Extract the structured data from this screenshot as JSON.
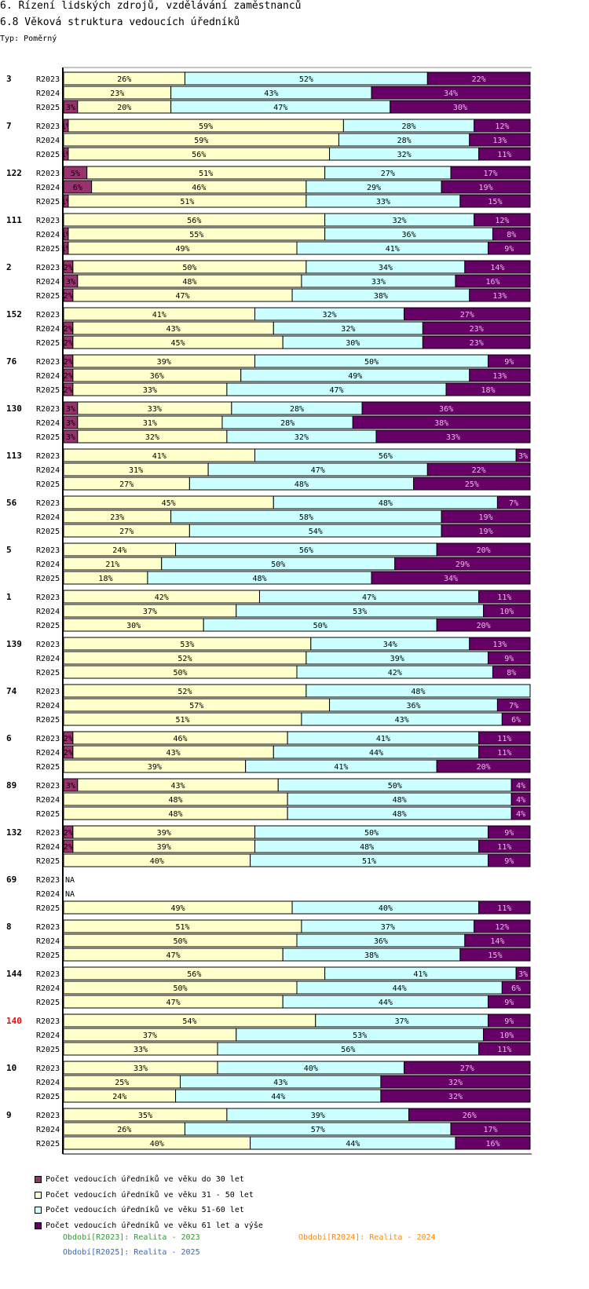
{
  "header": {
    "title1": "6. Řízení lidských zdrojů, vzdělávání zaměstnanců",
    "title2": "6.8 Věková struktura vedoucích úředníků",
    "type_label": "Typ: Poměrný"
  },
  "colors": {
    "do30": "#99336e",
    "y31_50": "#ffffcc",
    "y51_60": "#ccffff",
    "y61": "#660066",
    "highlight_group": "#ff0000"
  },
  "legend": [
    "Počet vedoucích úředníků ve věku do 30 let",
    "Počet vedoucích úředníků ve věku 31 - 50 let",
    "Počet vedoucích úředníků ve věku 51-60 let",
    "Počet vedoucích úředníků ve věku 61 let a výše"
  ],
  "periods": [
    {
      "text": "Období[R2023]: Realita - 2023",
      "color": "#339933"
    },
    {
      "text": "Období[R2024]: Realita - 2024",
      "color": "#ff8800"
    },
    {
      "text": "Období[R2025]: Realita - 2025",
      "color": "#3366cc"
    }
  ],
  "chart_data": {
    "type": "stacked-bar-horizontal",
    "title": "6.8 Věková struktura vedoucích úředníků",
    "unit": "%",
    "series_names": [
      "do 30 let",
      "31 - 50 let",
      "51-60 let",
      "61 let a výše"
    ],
    "groups": [
      {
        "label": "3",
        "highlight": false,
        "rows": [
          {
            "period": "R2023",
            "values": [
              0,
              26,
              52,
              22
            ]
          },
          {
            "period": "R2024",
            "values": [
              0,
              23,
              43,
              34
            ]
          },
          {
            "period": "R2025",
            "values": [
              3,
              20,
              47,
              30
            ]
          }
        ]
      },
      {
        "label": "7",
        "highlight": false,
        "rows": [
          {
            "period": "R2023",
            "values": [
              1,
              59,
              28,
              12
            ]
          },
          {
            "period": "R2024",
            "values": [
              0,
              59,
              28,
              13
            ]
          },
          {
            "period": "R2025",
            "values": [
              1,
              56,
              32,
              11
            ]
          }
        ]
      },
      {
        "label": "122",
        "highlight": false,
        "rows": [
          {
            "period": "R2023",
            "values": [
              5,
              51,
              27,
              17
            ]
          },
          {
            "period": "R2024",
            "values": [
              6,
              46,
              29,
              19
            ]
          },
          {
            "period": "R2025",
            "values": [
              1,
              51,
              33,
              15
            ]
          }
        ]
      },
      {
        "label": "111",
        "highlight": false,
        "rows": [
          {
            "period": "R2023",
            "values": [
              0,
              56,
              32,
              12
            ]
          },
          {
            "period": "R2024",
            "values": [
              1,
              55,
              36,
              8
            ]
          },
          {
            "period": "R2025",
            "values": [
              1,
              49,
              41,
              9
            ]
          }
        ]
      },
      {
        "label": "2",
        "highlight": false,
        "rows": [
          {
            "period": "R2023",
            "values": [
              2,
              50,
              34,
              14
            ]
          },
          {
            "period": "R2024",
            "values": [
              3,
              48,
              33,
              16
            ]
          },
          {
            "period": "R2025",
            "values": [
              2,
              47,
              38,
              13
            ]
          }
        ]
      },
      {
        "label": "152",
        "highlight": false,
        "rows": [
          {
            "period": "R2023",
            "values": [
              0,
              41,
              32,
              27
            ]
          },
          {
            "period": "R2024",
            "values": [
              2,
              43,
              32,
              23
            ]
          },
          {
            "period": "R2025",
            "values": [
              2,
              45,
              30,
              23
            ]
          }
        ]
      },
      {
        "label": "76",
        "highlight": false,
        "rows": [
          {
            "period": "R2023",
            "values": [
              2,
              39,
              50,
              9
            ]
          },
          {
            "period": "R2024",
            "values": [
              2,
              36,
              49,
              13
            ]
          },
          {
            "period": "R2025",
            "values": [
              2,
              33,
              47,
              18
            ]
          }
        ]
      },
      {
        "label": "130",
        "highlight": false,
        "rows": [
          {
            "period": "R2023",
            "values": [
              3,
              33,
              28,
              36
            ]
          },
          {
            "period": "R2024",
            "values": [
              3,
              31,
              28,
              38
            ]
          },
          {
            "period": "R2025",
            "values": [
              3,
              32,
              32,
              33
            ]
          }
        ]
      },
      {
        "label": "113",
        "highlight": false,
        "rows": [
          {
            "period": "R2023",
            "values": [
              0,
              41,
              56,
              3
            ]
          },
          {
            "period": "R2024",
            "values": [
              0,
              31,
              47,
              22
            ]
          },
          {
            "period": "R2025",
            "values": [
              0,
              27,
              48,
              25
            ]
          }
        ]
      },
      {
        "label": "56",
        "highlight": false,
        "rows": [
          {
            "period": "R2023",
            "values": [
              0,
              45,
              48,
              7
            ]
          },
          {
            "period": "R2024",
            "values": [
              0,
              23,
              58,
              19
            ]
          },
          {
            "period": "R2025",
            "values": [
              0,
              27,
              54,
              19
            ]
          }
        ]
      },
      {
        "label": "5",
        "highlight": false,
        "rows": [
          {
            "period": "R2023",
            "values": [
              0,
              24,
              56,
              20
            ]
          },
          {
            "period": "R2024",
            "values": [
              0,
              21,
              50,
              29
            ]
          },
          {
            "period": "R2025",
            "values": [
              0,
              18,
              48,
              34
            ]
          }
        ]
      },
      {
        "label": "1",
        "highlight": false,
        "rows": [
          {
            "period": "R2023",
            "values": [
              0,
              42,
              47,
              11
            ]
          },
          {
            "period": "R2024",
            "values": [
              0,
              37,
              53,
              10
            ]
          },
          {
            "period": "R2025",
            "values": [
              0,
              30,
              50,
              20
            ]
          }
        ]
      },
      {
        "label": "139",
        "highlight": false,
        "rows": [
          {
            "period": "R2023",
            "values": [
              0,
              53,
              34,
              13
            ]
          },
          {
            "period": "R2024",
            "values": [
              0,
              52,
              39,
              9
            ]
          },
          {
            "period": "R2025",
            "values": [
              0,
              50,
              42,
              8
            ]
          }
        ]
      },
      {
        "label": "74",
        "highlight": false,
        "rows": [
          {
            "period": "R2023",
            "values": [
              0,
              52,
              48,
              0
            ]
          },
          {
            "period": "R2024",
            "values": [
              0,
              57,
              36,
              7
            ]
          },
          {
            "period": "R2025",
            "values": [
              0,
              51,
              43,
              6
            ]
          }
        ]
      },
      {
        "label": "6",
        "highlight": false,
        "rows": [
          {
            "period": "R2023",
            "values": [
              2,
              46,
              41,
              11
            ]
          },
          {
            "period": "R2024",
            "values": [
              2,
              43,
              44,
              11
            ]
          },
          {
            "period": "R2025",
            "values": [
              0,
              39,
              41,
              20
            ]
          }
        ]
      },
      {
        "label": "89",
        "highlight": false,
        "rows": [
          {
            "period": "R2023",
            "values": [
              3,
              43,
              50,
              4
            ]
          },
          {
            "period": "R2024",
            "values": [
              0,
              48,
              48,
              4
            ]
          },
          {
            "period": "R2025",
            "values": [
              0,
              48,
              48,
              4
            ]
          }
        ]
      },
      {
        "label": "132",
        "highlight": false,
        "rows": [
          {
            "period": "R2023",
            "values": [
              2,
              39,
              50,
              9
            ]
          },
          {
            "period": "R2024",
            "values": [
              2,
              39,
              48,
              11
            ]
          },
          {
            "period": "R2025",
            "values": [
              0,
              40,
              51,
              9
            ]
          }
        ]
      },
      {
        "label": "69",
        "highlight": false,
        "rows": [
          {
            "period": "R2023",
            "na": true,
            "values": []
          },
          {
            "period": "R2024",
            "na": true,
            "values": []
          },
          {
            "period": "R2025",
            "values": [
              0,
              49,
              40,
              11
            ]
          }
        ]
      },
      {
        "label": "8",
        "highlight": false,
        "rows": [
          {
            "period": "R2023",
            "values": [
              0,
              51,
              37,
              12
            ]
          },
          {
            "period": "R2024",
            "values": [
              0,
              50,
              36,
              14
            ]
          },
          {
            "period": "R2025",
            "values": [
              0,
              47,
              38,
              15
            ]
          }
        ]
      },
      {
        "label": "144",
        "highlight": false,
        "rows": [
          {
            "period": "R2023",
            "values": [
              0,
              56,
              41,
              3
            ]
          },
          {
            "period": "R2024",
            "values": [
              0,
              50,
              44,
              6
            ]
          },
          {
            "period": "R2025",
            "values": [
              0,
              47,
              44,
              9
            ]
          }
        ]
      },
      {
        "label": "140",
        "highlight": true,
        "rows": [
          {
            "period": "R2023",
            "values": [
              0,
              54,
              37,
              9
            ]
          },
          {
            "period": "R2024",
            "values": [
              0,
              37,
              53,
              10
            ]
          },
          {
            "period": "R2025",
            "values": [
              0,
              33,
              56,
              11
            ]
          }
        ]
      },
      {
        "label": "10",
        "highlight": false,
        "rows": [
          {
            "period": "R2023",
            "values": [
              0,
              33,
              40,
              27
            ]
          },
          {
            "period": "R2024",
            "values": [
              0,
              25,
              43,
              32
            ]
          },
          {
            "period": "R2025",
            "values": [
              0,
              24,
              44,
              32
            ]
          }
        ]
      },
      {
        "label": "9",
        "highlight": false,
        "rows": [
          {
            "period": "R2023",
            "values": [
              0,
              35,
              39,
              26
            ]
          },
          {
            "period": "R2024",
            "values": [
              0,
              26,
              57,
              17
            ]
          },
          {
            "period": "R2025",
            "values": [
              0,
              40,
              44,
              16
            ]
          }
        ]
      }
    ],
    "na_label": "NA"
  }
}
